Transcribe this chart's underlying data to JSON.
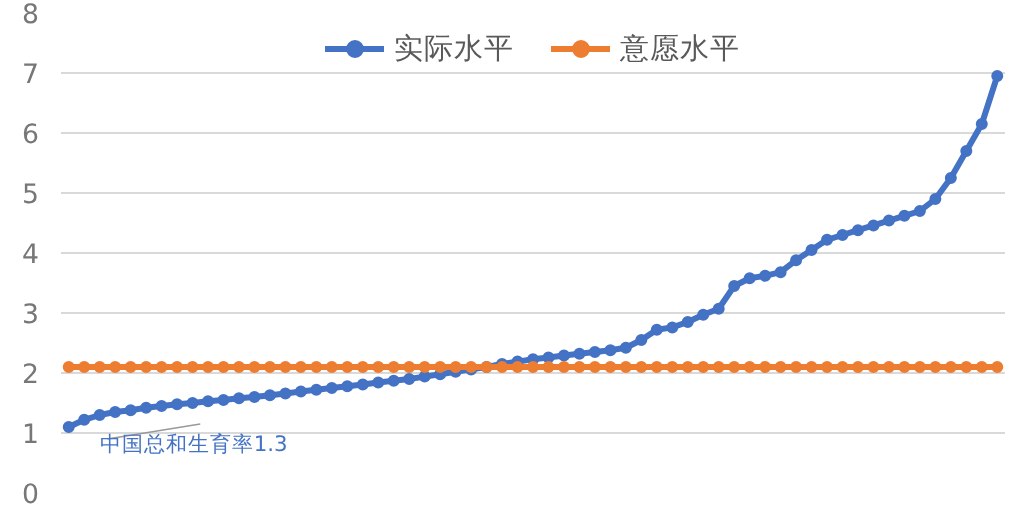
{
  "chart_data": {
    "type": "line",
    "categories": [
      null,
      null,
      null,
      null,
      null,
      null,
      null,
      null,
      null,
      null,
      null,
      null,
      null,
      null,
      null,
      null,
      null,
      null,
      null,
      null,
      null,
      null,
      null,
      null,
      null,
      null,
      null,
      null,
      null,
      null,
      null,
      null,
      null,
      null,
      null,
      null,
      null,
      null,
      null,
      null,
      null,
      null,
      null,
      null,
      null,
      null,
      null,
      null,
      null,
      null,
      null,
      null,
      null,
      null,
      null,
      null,
      null,
      null,
      null,
      null,
      null
    ],
    "series": [
      {
        "name": "实际水平",
        "color": "#4472c4",
        "values": [
          1.1,
          1.22,
          1.3,
          1.35,
          1.38,
          1.42,
          1.45,
          1.48,
          1.5,
          1.53,
          1.55,
          1.58,
          1.6,
          1.63,
          1.66,
          1.69,
          1.72,
          1.75,
          1.78,
          1.81,
          1.84,
          1.87,
          1.9,
          1.94,
          1.98,
          2.02,
          2.06,
          2.1,
          2.15,
          2.19,
          2.23,
          2.26,
          2.29,
          2.32,
          2.35,
          2.38,
          2.42,
          2.55,
          2.72,
          2.76,
          2.85,
          2.97,
          3.07,
          3.45,
          3.58,
          3.62,
          3.68,
          3.88,
          4.05,
          4.22,
          4.3,
          4.38,
          4.46,
          4.54,
          4.62,
          4.7,
          4.9,
          5.25,
          5.7,
          6.15,
          6.95
        ]
      },
      {
        "name": "意愿水平",
        "color": "#ed7d31",
        "values": [
          2.1,
          2.1,
          2.1,
          2.1,
          2.1,
          2.1,
          2.1,
          2.1,
          2.1,
          2.1,
          2.1,
          2.1,
          2.1,
          2.1,
          2.1,
          2.1,
          2.1,
          2.1,
          2.1,
          2.1,
          2.1,
          2.1,
          2.1,
          2.1,
          2.1,
          2.1,
          2.1,
          2.1,
          2.1,
          2.1,
          2.1,
          2.1,
          2.1,
          2.1,
          2.1,
          2.1,
          2.1,
          2.1,
          2.1,
          2.1,
          2.1,
          2.1,
          2.1,
          2.1,
          2.1,
          2.1,
          2.1,
          2.1,
          2.1,
          2.1,
          2.1,
          2.1,
          2.1,
          2.1,
          2.1,
          2.1,
          2.1,
          2.1,
          2.1,
          2.1,
          2.1
        ]
      }
    ],
    "ylim": [
      0,
      8
    ],
    "yticks": [
      0,
      1,
      2,
      3,
      4,
      5,
      6,
      7,
      8
    ],
    "grid": "y",
    "legend": "top",
    "tick_labels": "y",
    "marker": "circle",
    "line_style": "solid",
    "annotations": [
      "中国总和生育率1.3"
    ]
  }
}
